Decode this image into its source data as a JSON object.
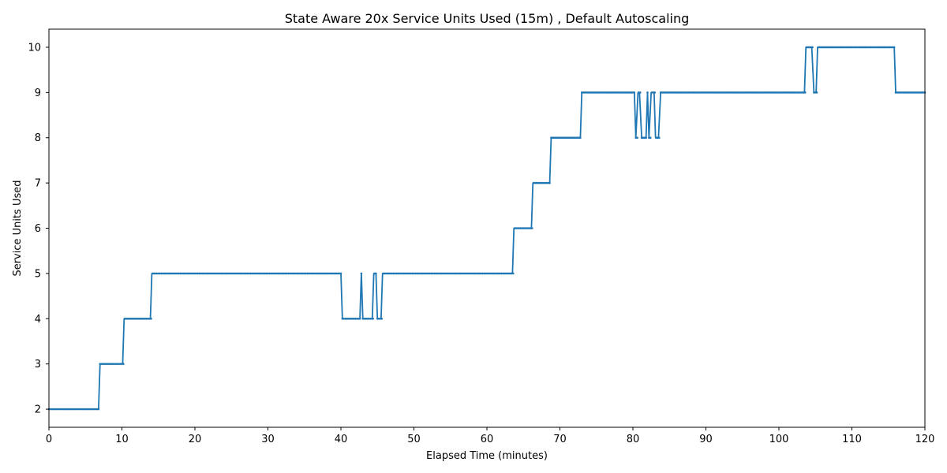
{
  "chart_data": {
    "type": "line",
    "title": "State Aware 20x Service Units Used (15m) , Default Autoscaling",
    "xlabel": "Elapsed Time (minutes)",
    "ylabel": "Service Units Used",
    "xlim": [
      0,
      120
    ],
    "ylim": [
      1.6,
      10.4
    ],
    "xticks": [
      0,
      10,
      20,
      30,
      40,
      50,
      60,
      70,
      80,
      90,
      100,
      110,
      120
    ],
    "yticks": [
      2,
      3,
      4,
      5,
      6,
      7,
      8,
      9,
      10
    ],
    "grid": false,
    "legend": "none",
    "series": [
      {
        "color": "#1f77b4",
        "marker": "dot",
        "x": [
          0,
          6.8,
          7.0,
          10.1,
          10.3,
          13.9,
          14.1,
          40.0,
          40.2,
          42.6,
          42.8,
          43.0,
          44.3,
          44.5,
          44.8,
          45.0,
          45.5,
          45.7,
          63.5,
          63.7,
          66.1,
          66.3,
          68.6,
          68.8,
          72.8,
          73.0,
          80.2,
          80.4,
          80.7,
          80.9,
          81.2,
          81.8,
          82.0,
          82.2,
          82.5,
          82.9,
          83.1,
          83.5,
          83.8,
          103.5,
          103.7,
          104.5,
          104.8,
          105.1,
          105.3,
          115.8,
          116.0,
          120.0
        ],
        "y": [
          2,
          2,
          3,
          3,
          4,
          4,
          5,
          5,
          4,
          4,
          5,
          4,
          4,
          5,
          5,
          4,
          4,
          5,
          5,
          6,
          6,
          7,
          7,
          8,
          8,
          9,
          9,
          8,
          9,
          9,
          8,
          8,
          9,
          8,
          9,
          9,
          8,
          8,
          9,
          9,
          10,
          10,
          9,
          9,
          10,
          10,
          9,
          9
        ]
      }
    ]
  }
}
